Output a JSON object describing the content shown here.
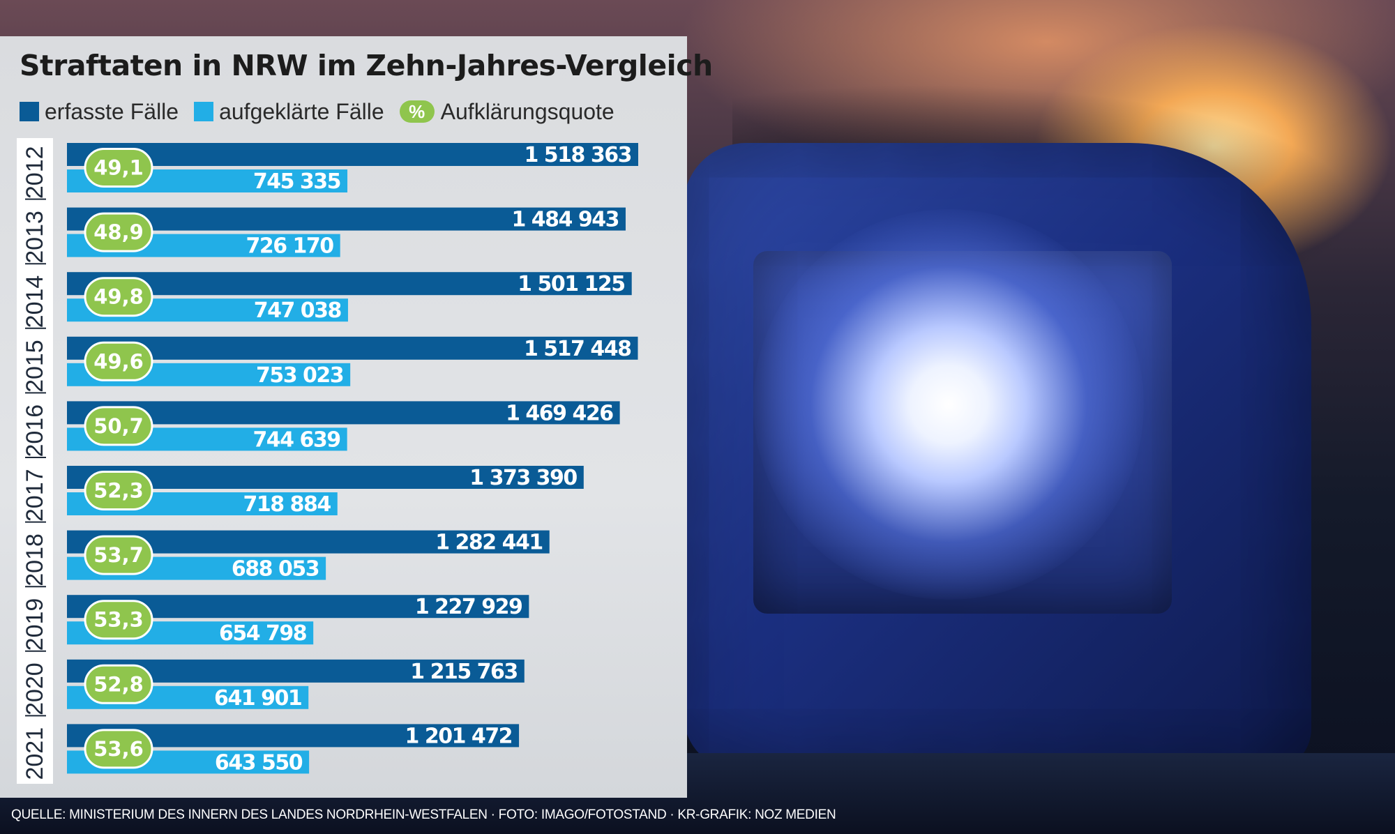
{
  "colors": {
    "erfasst": "#0a5b96",
    "aufgeklaert": "#22aee6",
    "quote": "#8fc54d"
  },
  "chart_data": {
    "type": "bar",
    "title": "Straftaten in NRW im Zehn-Jahres-Vergleich",
    "legend": [
      {
        "label": "erfasste Fälle",
        "symbol": "square"
      },
      {
        "label": "aufgeklärte Fälle",
        "symbol": "square"
      },
      {
        "label": "Aufklärungsquote",
        "symbol": "%"
      }
    ],
    "legend_placement": "top",
    "orientation": "horizontal",
    "categories": [
      "2012",
      "2013",
      "2014",
      "2015",
      "2016",
      "2017",
      "2018",
      "2019",
      "2020",
      "2021"
    ],
    "series": [
      {
        "name": "erfasste Fälle",
        "values": [
          1518363,
          1484943,
          1501125,
          1517448,
          1469426,
          1373390,
          1282441,
          1227929,
          1215763,
          1201472
        ]
      },
      {
        "name": "aufgeklärte Fälle",
        "values": [
          745335,
          726170,
          747038,
          753023,
          744639,
          718884,
          688053,
          654798,
          641901,
          643550
        ]
      }
    ],
    "value_labels": {
      "erfasste Fälle": [
        "1 518 363",
        "1 484 943",
        "1 501 125",
        "1 517 448",
        "1 469 426",
        "1 373 390",
        "1 282 441",
        "1 227 929",
        "1 215 763",
        "1 201 472"
      ],
      "aufgeklärte Fälle": [
        "745 335",
        "726 170",
        "747 038",
        "753 023",
        "744 639",
        "718 884",
        "688 053",
        "654 798",
        "641 901",
        "643 550"
      ]
    },
    "quote": [
      "49,1",
      "48,9",
      "49,8",
      "49,6",
      "50,7",
      "52,3",
      "53,7",
      "53,3",
      "52,8",
      "53,6"
    ],
    "xlim": [
      0,
      1518363
    ],
    "grid": false
  },
  "source": "QUELLE: MINISTERIUM DES INNERN DES LANDES NORDRHEIN-WESTFALEN · FOTO: IMAGO/FOTOSTAND · KR-GRAFIK: NOZ MEDIEN"
}
